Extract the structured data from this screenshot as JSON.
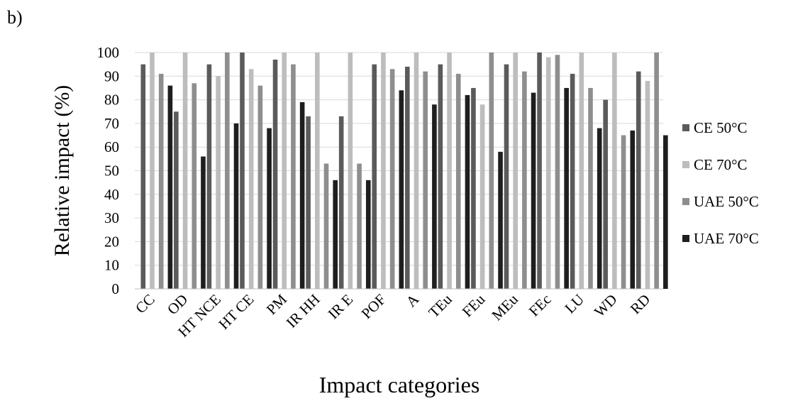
{
  "panel_label": "b)",
  "chart_data": {
    "type": "bar",
    "title": "",
    "xlabel": "Impact categories",
    "ylabel": "Relative impact  (%)",
    "ylim": [
      0,
      100
    ],
    "yticks": [
      0,
      10,
      20,
      30,
      40,
      50,
      60,
      70,
      80,
      90,
      100
    ],
    "grid": true,
    "legend_position": "right",
    "categories": [
      "CC",
      "OD",
      "HT NCE",
      "HT CE",
      "PM",
      "IR HH",
      "IR E",
      "POF",
      "A",
      "TEu",
      "FEu",
      "MEu",
      "FEc",
      "LU",
      "WD",
      "RD"
    ],
    "series": [
      {
        "name": "CE 50°C",
        "color": "#5b5b5b",
        "values": [
          95,
          75,
          95,
          100,
          97,
          73,
          73,
          95,
          94,
          95,
          85,
          95,
          100,
          91,
          80,
          92
        ]
      },
      {
        "name": "CE 70°C",
        "color": "#bdbdbd",
        "values": [
          100,
          100,
          90,
          93,
          100,
          100,
          100,
          100,
          100,
          100,
          78,
          100,
          98,
          100,
          100,
          88
        ]
      },
      {
        "name": "UAE 50°C",
        "color": "#8e8e8e",
        "values": [
          91,
          87,
          100,
          86,
          95,
          53,
          53,
          93,
          92,
          91,
          100,
          92,
          99,
          85,
          65,
          100
        ]
      },
      {
        "name": "UAE 70°C",
        "color": "#1e1e1e",
        "values": [
          86,
          56,
          70,
          68,
          79,
          46,
          46,
          84,
          78,
          82,
          58,
          83,
          85,
          68,
          67,
          65
        ]
      }
    ]
  }
}
